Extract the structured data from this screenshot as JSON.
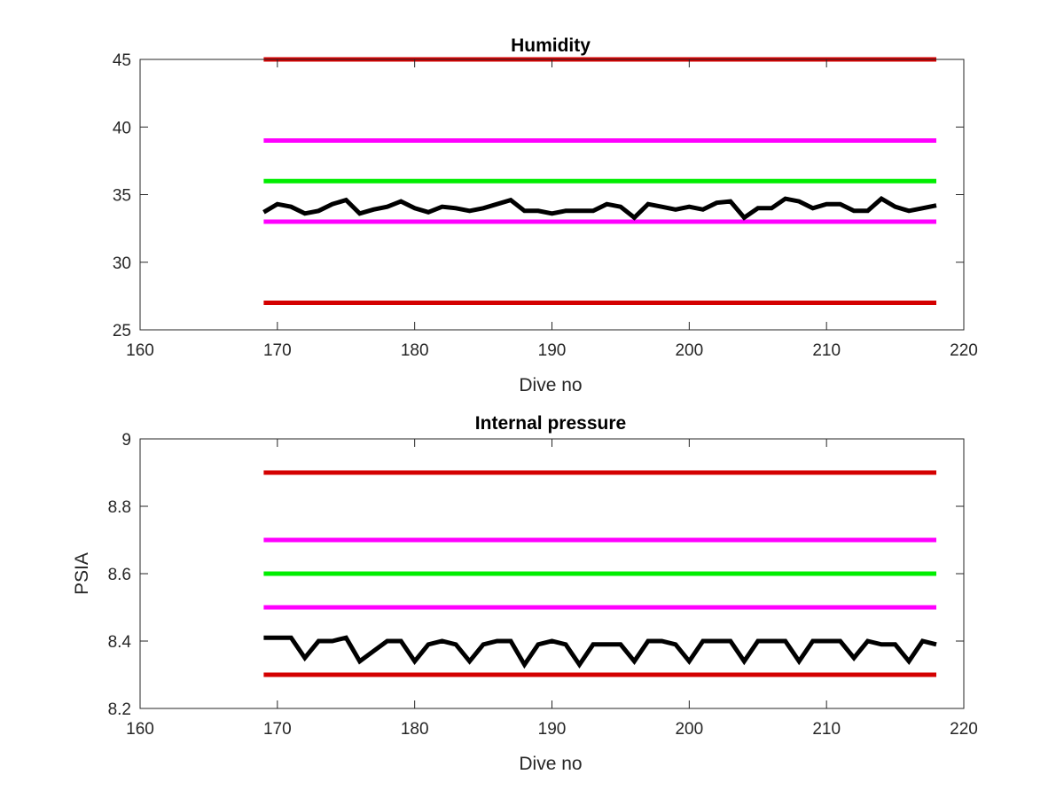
{
  "chart_data": [
    {
      "type": "line",
      "title": "Humidity",
      "xlabel": "Dive no",
      "ylabel": "",
      "xlim": [
        160,
        220
      ],
      "ylim": [
        25,
        45
      ],
      "xticks": [
        160,
        170,
        180,
        190,
        200,
        210,
        220
      ],
      "yticks": [
        25,
        30,
        35,
        40,
        45
      ],
      "grid": false,
      "legend": "none",
      "series": [
        {
          "color": "#d40000",
          "x": [
            169,
            218
          ],
          "y": [
            45,
            45
          ]
        },
        {
          "color": "#ff00ff",
          "x": [
            169,
            218
          ],
          "y": [
            39,
            39
          ]
        },
        {
          "color": "#00ee00",
          "x": [
            169,
            218
          ],
          "y": [
            36,
            36
          ]
        },
        {
          "color": "#ff00ff",
          "x": [
            169,
            218
          ],
          "y": [
            33,
            33
          ]
        },
        {
          "color": "#d40000",
          "x": [
            169,
            218
          ],
          "y": [
            27,
            27
          ]
        },
        {
          "color": "#000000",
          "x": [
            169,
            170,
            171,
            172,
            173,
            174,
            175,
            176,
            177,
            178,
            179,
            180,
            181,
            182,
            183,
            184,
            185,
            186,
            187,
            188,
            189,
            190,
            191,
            192,
            193,
            194,
            195,
            196,
            197,
            198,
            199,
            200,
            201,
            202,
            203,
            204,
            205,
            206,
            207,
            208,
            209,
            210,
            211,
            212,
            213,
            214,
            215,
            216,
            217,
            218
          ],
          "y": [
            33.7,
            34.3,
            34.1,
            33.6,
            33.8,
            34.3,
            34.6,
            33.6,
            33.9,
            34.1,
            34.5,
            34.0,
            33.7,
            34.1,
            34.0,
            33.8,
            34.0,
            34.3,
            34.6,
            33.8,
            33.8,
            33.6,
            33.8,
            33.8,
            33.8,
            34.3,
            34.1,
            33.3,
            34.3,
            34.1,
            33.9,
            34.1,
            33.9,
            34.4,
            34.5,
            33.3,
            34.0,
            34.0,
            34.7,
            34.5,
            34.0,
            34.3,
            34.3,
            33.8,
            33.8,
            34.7,
            34.1,
            33.8,
            34.0,
            34.2
          ]
        }
      ]
    },
    {
      "type": "line",
      "title": "Internal pressure",
      "xlabel": "Dive no",
      "ylabel": "PSIA",
      "xlim": [
        160,
        220
      ],
      "ylim": [
        8.2,
        9
      ],
      "xticks": [
        160,
        170,
        180,
        190,
        200,
        210,
        220
      ],
      "yticks": [
        8.2,
        8.4,
        8.6,
        8.8,
        9
      ],
      "grid": false,
      "legend": "none",
      "series": [
        {
          "color": "#d40000",
          "x": [
            169,
            218
          ],
          "y": [
            8.9,
            8.9
          ]
        },
        {
          "color": "#ff00ff",
          "x": [
            169,
            218
          ],
          "y": [
            8.7,
            8.7
          ]
        },
        {
          "color": "#00ee00",
          "x": [
            169,
            218
          ],
          "y": [
            8.6,
            8.6
          ]
        },
        {
          "color": "#ff00ff",
          "x": [
            169,
            218
          ],
          "y": [
            8.5,
            8.5
          ]
        },
        {
          "color": "#d40000",
          "x": [
            169,
            218
          ],
          "y": [
            8.3,
            8.3
          ]
        },
        {
          "color": "#000000",
          "x": [
            169,
            170,
            171,
            172,
            173,
            174,
            175,
            176,
            177,
            178,
            179,
            180,
            181,
            182,
            183,
            184,
            185,
            186,
            187,
            188,
            189,
            190,
            191,
            192,
            193,
            194,
            195,
            196,
            197,
            198,
            199,
            200,
            201,
            202,
            203,
            204,
            205,
            206,
            207,
            208,
            209,
            210,
            211,
            212,
            213,
            214,
            215,
            216,
            217,
            218
          ],
          "y": [
            8.41,
            8.41,
            8.41,
            8.35,
            8.4,
            8.4,
            8.41,
            8.34,
            8.37,
            8.4,
            8.4,
            8.34,
            8.39,
            8.4,
            8.39,
            8.34,
            8.39,
            8.4,
            8.4,
            8.33,
            8.39,
            8.4,
            8.39,
            8.33,
            8.39,
            8.39,
            8.39,
            8.34,
            8.4,
            8.4,
            8.39,
            8.34,
            8.4,
            8.4,
            8.4,
            8.34,
            8.4,
            8.4,
            8.4,
            8.34,
            8.4,
            8.4,
            8.4,
            8.35,
            8.4,
            8.39,
            8.39,
            8.34,
            8.4,
            8.39
          ]
        }
      ]
    }
  ]
}
